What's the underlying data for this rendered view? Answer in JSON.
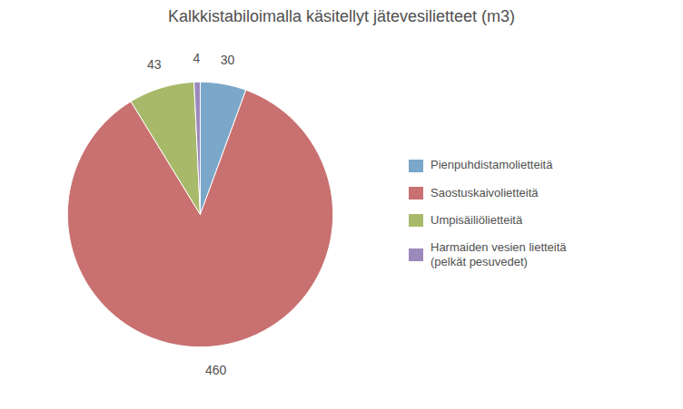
{
  "chart_data": {
    "type": "pie",
    "title": "Kalkkistabiloimalla käsitellyt jätevesilietteet (m3)",
    "categories": [
      "Pienpuhdistamolietteitä",
      "Saostuskaivolietteitä",
      "Umpisäiliölietteitä",
      "Harmaiden vesien lietteitä\n(pelkät pesuvedet)"
    ],
    "values": [
      30,
      460,
      43,
      4
    ],
    "colors": [
      "#7BA7C9",
      "#C97070",
      "#A8BA6A",
      "#9B89BC"
    ],
    "data_labels": true,
    "legend": "right"
  }
}
